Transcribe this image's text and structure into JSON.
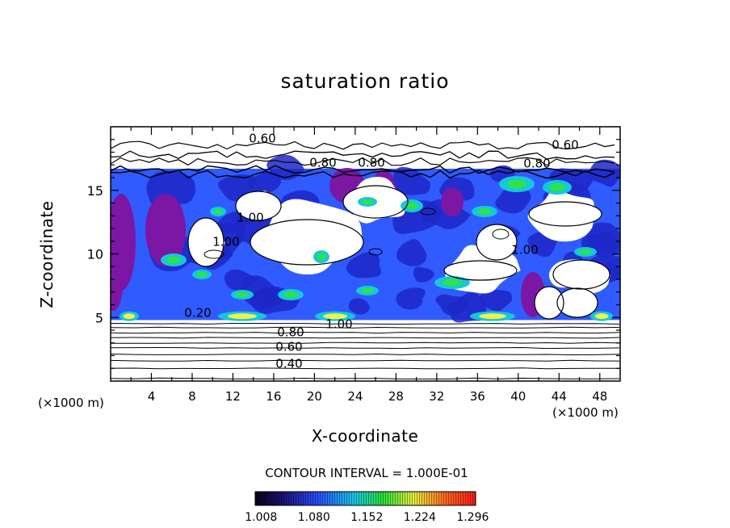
{
  "chart_data": {
    "type": "heatmap",
    "title": "saturation ratio",
    "xlabel": "X-coordinate",
    "ylabel": "Z-coordinate",
    "x_unit_label": "(×1000 m)",
    "y_unit_label": "(×1000 m)",
    "xlim": [
      0,
      50
    ],
    "ylim": [
      0,
      20
    ],
    "x_ticks": [
      "4",
      "8",
      "12",
      "16",
      "20",
      "24",
      "28",
      "32",
      "36",
      "40",
      "44",
      "48"
    ],
    "y_ticks": [
      "5",
      "10",
      "15"
    ],
    "contour_interval_text": "CONTOUR INTERVAL = 1.000E-01",
    "contour_labels": [
      "0.60",
      "0.60",
      "0.80",
      "0.80",
      "0.80",
      "0.80",
      "0.60",
      "0.40",
      "0.20",
      "1.00",
      "1.00",
      "1.00",
      "1.00"
    ],
    "colorbar_ticks": [
      "1.008",
      "1.080",
      "1.152",
      "1.224",
      "1.296"
    ],
    "colorbar_range": [
      1.0,
      1.3
    ],
    "colors": {
      "purple": "#7b17a4",
      "dark_blue": "#1d27c8",
      "blue": "#2f5bff",
      "cyan": "#14c8dc",
      "green": "#2ee24a",
      "yellow": "#f0f24e"
    },
    "horizontal_contour_levels_z": [
      0.2,
      1.0,
      1.6,
      2.1,
      2.6,
      3.0,
      3.4,
      3.8,
      4.2,
      4.5
    ],
    "supersaturated_layer_z": [
      4.8,
      16.7
    ]
  }
}
